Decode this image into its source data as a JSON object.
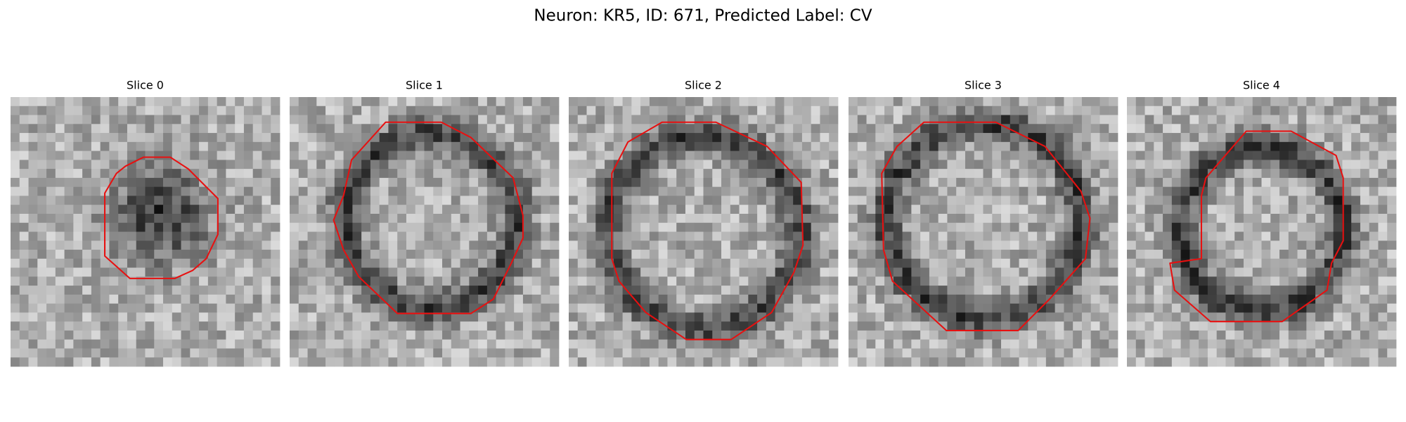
{
  "title": "Neuron: KR5, ID: 671, Predicted Label: CV",
  "panels": [
    {
      "title": "Slice 0"
    },
    {
      "title": "Slice 1"
    },
    {
      "title": "Slice 2"
    },
    {
      "title": "Slice 3"
    },
    {
      "title": "Slice 4"
    }
  ]
}
